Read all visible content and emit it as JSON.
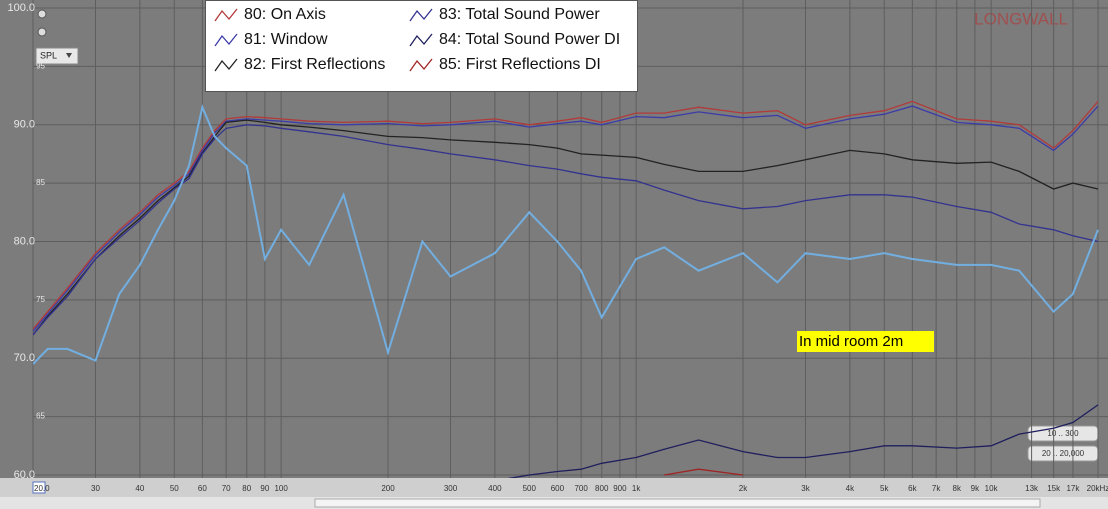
{
  "chart_data": {
    "type": "line",
    "x": [
      20,
      22,
      25,
      30,
      35,
      40,
      45,
      50,
      55,
      60,
      65,
      70,
      80,
      90,
      100,
      120,
      150,
      200,
      250,
      300,
      400,
      500,
      600,
      700,
      800,
      1000,
      1200,
      1500,
      2000,
      2500,
      3000,
      4000,
      5000,
      6000,
      8000,
      10000,
      12000,
      15000,
      17000,
      20000
    ],
    "xlim": [
      20,
      20000
    ],
    "log_x": true,
    "xticks": [
      {
        "value": 20,
        "label": "20.0"
      },
      30,
      40,
      50,
      60,
      70,
      80,
      90,
      100,
      200,
      300,
      400,
      500,
      600,
      700,
      800,
      900,
      {
        "value": 1000,
        "label": "1k"
      },
      {
        "value": 2000,
        "label": "2k"
      },
      {
        "value": 3000,
        "label": "3k"
      },
      {
        "value": 4000,
        "label": "4k"
      },
      {
        "value": 5000,
        "label": "5k"
      },
      {
        "value": 6000,
        "label": "6k"
      },
      {
        "value": 7000,
        "label": "7k"
      },
      {
        "value": 8000,
        "label": "8k"
      },
      {
        "value": 9000,
        "label": "9k"
      },
      {
        "value": 10000,
        "label": "10k"
      },
      {
        "value": 13000,
        "label": "13k"
      },
      {
        "value": 15000,
        "label": "15k"
      },
      {
        "value": 17000,
        "label": "17k"
      },
      {
        "value": 20000,
        "label": "20kHz"
      }
    ],
    "ylim": [
      60,
      100
    ],
    "yticks": [
      {
        "value": 60,
        "label": "60.0"
      },
      65,
      {
        "value": 70,
        "label": "70.0"
      },
      75,
      {
        "value": 80,
        "label": "80.0"
      },
      85,
      {
        "value": 90,
        "label": "90.0"
      },
      95,
      {
        "value": 100,
        "label": "100.0"
      }
    ],
    "grid": true,
    "series": [
      {
        "name": "80: On Axis",
        "color": "#b23a3a",
        "values": [
          72.5,
          74,
          76,
          79,
          81,
          82.5,
          84,
          85,
          86,
          88,
          89.5,
          90.5,
          90.7,
          90.6,
          90.5,
          90.3,
          90.2,
          90.3,
          90.1,
          90.2,
          90.5,
          90,
          90.3,
          90.6,
          90.2,
          91,
          91,
          91.5,
          91,
          91.2,
          90,
          90.8,
          91.2,
          92,
          90.5,
          90.3,
          90,
          88,
          89.5,
          92
        ]
      },
      {
        "name": "81: Window",
        "color": "#3c3ca8",
        "values": [
          72.3,
          73.8,
          75.8,
          78.8,
          80.8,
          82.3,
          83.8,
          84.8,
          85.8,
          87.8,
          89.3,
          90.3,
          90.5,
          90.4,
          90.3,
          90.1,
          90,
          90.1,
          89.9,
          90,
          90.3,
          89.8,
          90.1,
          90.3,
          90,
          90.7,
          90.6,
          91.1,
          90.6,
          90.8,
          89.7,
          90.5,
          90.9,
          91.6,
          90.2,
          90,
          89.7,
          87.8,
          89.2,
          91.6
        ]
      },
      {
        "name": "82: First Reflections",
        "color": "#222222",
        "values": [
          72,
          73.6,
          75.5,
          78.5,
          80.5,
          82,
          83.5,
          84.6,
          85.6,
          87.6,
          89,
          90.2,
          90.4,
          90.2,
          90,
          89.8,
          89.5,
          89,
          88.9,
          88.7,
          88.5,
          88.3,
          88,
          87.5,
          87.4,
          87.2,
          86.6,
          86,
          86,
          86.5,
          87,
          87.8,
          87.5,
          87,
          86.7,
          86.8,
          86,
          84.5,
          85,
          84.5
        ]
      },
      {
        "name": "83: Total Sound Power",
        "color": "#33338f",
        "values": [
          72,
          73.5,
          75.3,
          78.5,
          80.3,
          81.8,
          83.3,
          84.5,
          85.4,
          87.5,
          88.8,
          89.7,
          90,
          89.9,
          89.7,
          89.4,
          89,
          88.3,
          87.9,
          87.5,
          87,
          86.5,
          86.2,
          85.8,
          85.5,
          85.2,
          84.4,
          83.5,
          82.8,
          83,
          83.5,
          84,
          84,
          83.8,
          83,
          82.5,
          81.5,
          81,
          80.5,
          80
        ]
      },
      {
        "name": "84: Total Sound Power DI",
        "color": "#1f1f5e",
        "values": [
          null,
          null,
          null,
          null,
          null,
          null,
          null,
          null,
          null,
          null,
          null,
          null,
          null,
          null,
          null,
          null,
          null,
          null,
          null,
          null,
          59.5,
          60,
          60.3,
          60.5,
          61,
          61.5,
          62.2,
          63,
          62,
          61.5,
          61.5,
          62,
          62.5,
          62.5,
          62.3,
          62.5,
          63.5,
          64,
          64.5,
          66
        ]
      },
      {
        "name": "85: First Reflections DI",
        "color": "#a02424",
        "values": [
          null,
          null,
          null,
          null,
          null,
          null,
          null,
          null,
          null,
          null,
          null,
          null,
          null,
          null,
          null,
          null,
          null,
          null,
          null,
          null,
          null,
          null,
          null,
          null,
          null,
          null,
          60,
          60.5,
          60,
          null,
          null,
          null,
          null,
          null,
          null,
          null,
          null,
          null,
          null,
          null
        ]
      },
      {
        "color": "#72aee0",
        "values": [
          69.5,
          70.8,
          70.8,
          69.8,
          75.5,
          78,
          81,
          83.5,
          86.5,
          91.5,
          89,
          88,
          86.5,
          78.5,
          81,
          78,
          84,
          70.5,
          80,
          77,
          79,
          82.5,
          80,
          77.5,
          73.5,
          78.5,
          79.5,
          77.5,
          79,
          76.5,
          79,
          78.5,
          79,
          78.5,
          78,
          78,
          77.5,
          74,
          75.5,
          81
        ]
      }
    ],
    "annotations": [
      "In mid room 2m"
    ],
    "watermark": "LONGWALL"
  },
  "ui": {
    "dropdown": "SPL",
    "buttons": [
      "10 .. 300",
      "20 .. 20,000"
    ]
  }
}
